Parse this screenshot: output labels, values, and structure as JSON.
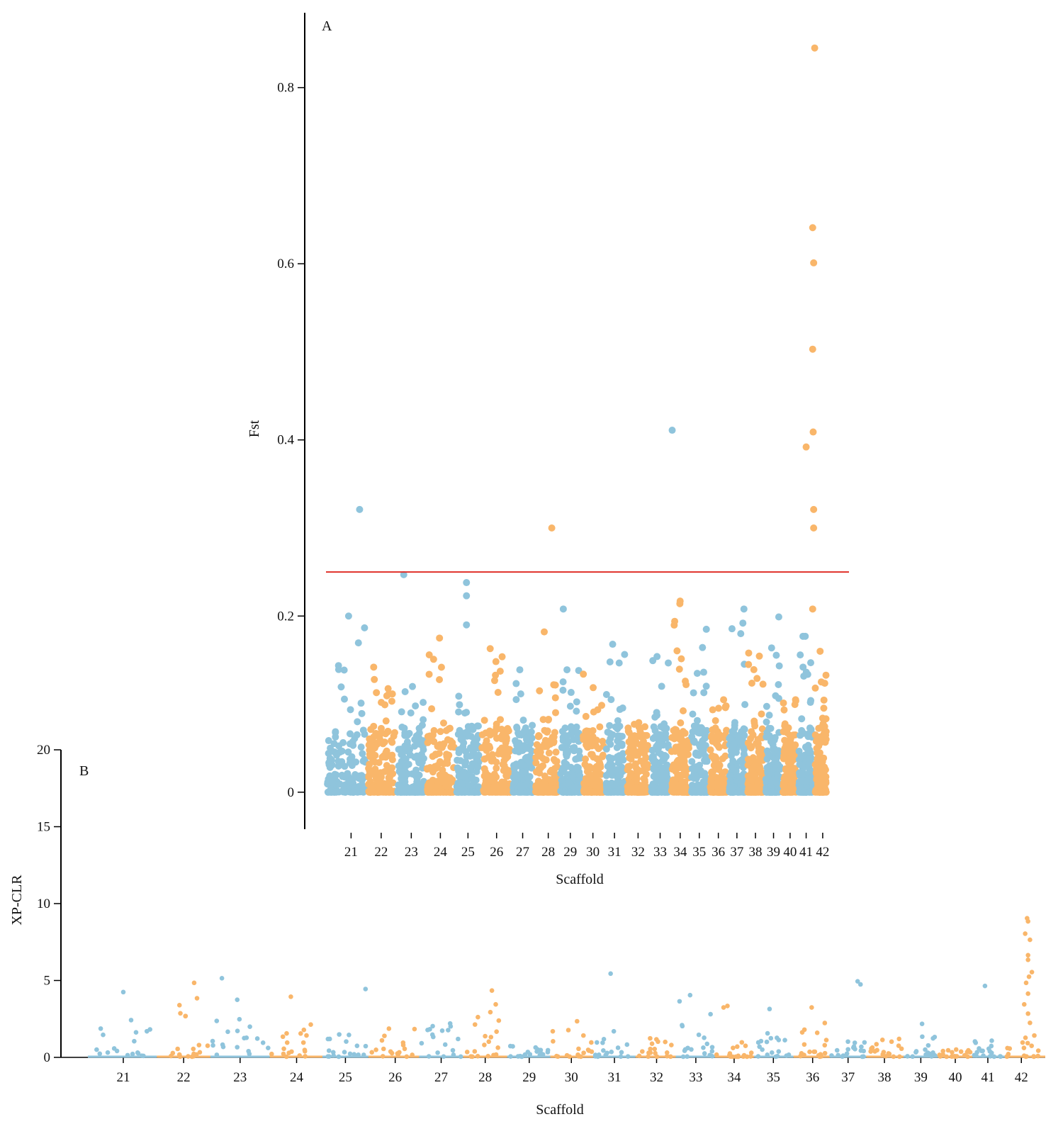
{
  "colors": {
    "blue": "#8fc4dc",
    "orange": "#f9b66a",
    "threshold": "#e0302a",
    "axis": "#000000"
  },
  "chart_data": [
    {
      "type": "scatter",
      "panel": "A",
      "ylabel": "Fst",
      "xlabel": "Scaffold",
      "ylim": [
        -0.042,
        0.885
      ],
      "yticks": [
        0,
        0.2,
        0.4,
        0.6,
        0.8
      ],
      "ytick_labels": [
        "0",
        "0.2",
        "0.4",
        "0.6",
        "0.8"
      ],
      "threshold": 0.25,
      "scaffolds": [
        {
          "label": "21",
          "center": 0.05,
          "start": 0.0,
          "end": 0.082,
          "color": "blue",
          "peak": 0.2
        },
        {
          "label": "22",
          "center": 0.11,
          "start": 0.082,
          "end": 0.14,
          "color": "orange",
          "peak": 0.142
        },
        {
          "label": "23",
          "center": 0.17,
          "start": 0.14,
          "end": 0.198,
          "color": "blue",
          "peak": 0.12
        },
        {
          "label": "24",
          "center": 0.228,
          "start": 0.198,
          "end": 0.258,
          "color": "orange",
          "peak": 0.175
        },
        {
          "label": "25",
          "center": 0.283,
          "start": 0.258,
          "end": 0.308,
          "color": "blue",
          "peak": 0.109
        },
        {
          "label": "26",
          "center": 0.34,
          "start": 0.308,
          "end": 0.37,
          "color": "orange",
          "peak": 0.163
        },
        {
          "label": "27",
          "center": 0.392,
          "start": 0.37,
          "end": 0.415,
          "color": "blue",
          "peak": 0.139
        },
        {
          "label": "28",
          "center": 0.443,
          "start": 0.415,
          "end": 0.465,
          "color": "orange",
          "peak": 0.122
        },
        {
          "label": "29",
          "center": 0.487,
          "start": 0.465,
          "end": 0.51,
          "color": "blue",
          "peak": 0.139
        },
        {
          "label": "30",
          "center": 0.532,
          "start": 0.51,
          "end": 0.556,
          "color": "orange",
          "peak": 0.134
        },
        {
          "label": "31",
          "center": 0.575,
          "start": 0.556,
          "end": 0.598,
          "color": "blue",
          "peak": 0.168
        },
        {
          "label": "32",
          "center": 0.622,
          "start": 0.598,
          "end": 0.646,
          "color": "orange",
          "peak": 0.079
        },
        {
          "label": "33",
          "center": 0.666,
          "start": 0.646,
          "end": 0.686,
          "color": "blue",
          "peak": 0.154
        },
        {
          "label": "34",
          "center": 0.706,
          "start": 0.686,
          "end": 0.726,
          "color": "orange",
          "peak": 0.217
        },
        {
          "label": "35",
          "center": 0.744,
          "start": 0.726,
          "end": 0.763,
          "color": "blue",
          "peak": 0.185
        },
        {
          "label": "36",
          "center": 0.782,
          "start": 0.763,
          "end": 0.801,
          "color": "orange",
          "peak": 0.105
        },
        {
          "label": "37",
          "center": 0.819,
          "start": 0.801,
          "end": 0.838,
          "color": "blue",
          "peak": 0.192
        },
        {
          "label": "38",
          "center": 0.856,
          "start": 0.838,
          "end": 0.874,
          "color": "orange",
          "peak": 0.158
        },
        {
          "label": "39",
          "center": 0.892,
          "start": 0.874,
          "end": 0.908,
          "color": "blue",
          "peak": 0.199
        },
        {
          "label": "40",
          "center": 0.925,
          "start": 0.908,
          "end": 0.94,
          "color": "orange",
          "peak": 0.105
        },
        {
          "label": "41",
          "center": 0.957,
          "start": 0.94,
          "end": 0.972,
          "color": "blue",
          "peak": 0.177
        },
        {
          "label": "42",
          "center": 0.99,
          "start": 0.972,
          "end": 1.0,
          "color": "orange",
          "peak": 0.16
        }
      ],
      "outliers": [
        {
          "scaffold": "21",
          "x": 0.067,
          "y": 0.321,
          "color": "blue"
        },
        {
          "scaffold": "23",
          "x": 0.155,
          "y": 0.247,
          "color": "blue"
        },
        {
          "scaffold": "25",
          "x": 0.28,
          "y": 0.238,
          "color": "blue"
        },
        {
          "scaffold": "25",
          "x": 0.28,
          "y": 0.223,
          "color": "blue"
        },
        {
          "scaffold": "25",
          "x": 0.28,
          "y": 0.19,
          "color": "blue"
        },
        {
          "scaffold": "28",
          "x": 0.45,
          "y": 0.3,
          "color": "orange"
        },
        {
          "scaffold": "28",
          "x": 0.435,
          "y": 0.182,
          "color": "orange"
        },
        {
          "scaffold": "29",
          "x": 0.473,
          "y": 0.208,
          "color": "blue"
        },
        {
          "scaffold": "34",
          "x": 0.69,
          "y": 0.411,
          "color": "blue"
        },
        {
          "scaffold": "34",
          "x": 0.695,
          "y": 0.194,
          "color": "orange"
        },
        {
          "scaffold": "37",
          "x": 0.833,
          "y": 0.208,
          "color": "blue"
        },
        {
          "scaffold": "41",
          "x": 0.957,
          "y": 0.392,
          "color": "orange"
        },
        {
          "scaffold": "42",
          "x": 0.974,
          "y": 0.845,
          "color": "orange"
        },
        {
          "scaffold": "42",
          "x": 0.97,
          "y": 0.641,
          "color": "orange"
        },
        {
          "scaffold": "42",
          "x": 0.972,
          "y": 0.601,
          "color": "orange"
        },
        {
          "scaffold": "42",
          "x": 0.97,
          "y": 0.503,
          "color": "orange"
        },
        {
          "scaffold": "42",
          "x": 0.971,
          "y": 0.409,
          "color": "orange"
        },
        {
          "scaffold": "42",
          "x": 0.972,
          "y": 0.321,
          "color": "orange"
        },
        {
          "scaffold": "42",
          "x": 0.972,
          "y": 0.3,
          "color": "orange"
        },
        {
          "scaffold": "42",
          "x": 0.97,
          "y": 0.208,
          "color": "orange"
        }
      ]
    },
    {
      "type": "scatter",
      "panel": "B",
      "ylabel": "XP-CLR",
      "xlabel": "Scaffold",
      "ylim": [
        0,
        20
      ],
      "yticks": [
        0,
        5,
        10,
        15,
        20
      ],
      "ytick_labels": [
        "0",
        "5",
        "10",
        "15",
        "20"
      ],
      "scaffolds": [
        {
          "label": "21",
          "center": 0.037,
          "start": 0.0,
          "end": 0.072,
          "color": "blue",
          "peak": 2.4
        },
        {
          "label": "22",
          "center": 0.1,
          "start": 0.072,
          "end": 0.128,
          "color": "orange",
          "peak": 3.8
        },
        {
          "label": "23",
          "center": 0.159,
          "start": 0.128,
          "end": 0.19,
          "color": "blue",
          "peak": 2.7
        },
        {
          "label": "24",
          "center": 0.218,
          "start": 0.19,
          "end": 0.245,
          "color": "orange",
          "peak": 2.1
        },
        {
          "label": "25",
          "center": 0.269,
          "start": 0.245,
          "end": 0.293,
          "color": "blue",
          "peak": 1.5
        },
        {
          "label": "26",
          "center": 0.321,
          "start": 0.293,
          "end": 0.346,
          "color": "orange",
          "peak": 2.1
        },
        {
          "label": "27",
          "center": 0.369,
          "start": 0.346,
          "end": 0.392,
          "color": "blue",
          "peak": 2.2
        },
        {
          "label": "28",
          "center": 0.415,
          "start": 0.392,
          "end": 0.438,
          "color": "orange",
          "peak": 3.6
        },
        {
          "label": "29",
          "center": 0.461,
          "start": 0.438,
          "end": 0.483,
          "color": "blue",
          "peak": 0.7
        },
        {
          "label": "30",
          "center": 0.505,
          "start": 0.483,
          "end": 0.528,
          "color": "orange",
          "peak": 2.4
        },
        {
          "label": "31",
          "center": 0.55,
          "start": 0.528,
          "end": 0.572,
          "color": "blue",
          "peak": 2.0
        },
        {
          "label": "32",
          "center": 0.594,
          "start": 0.572,
          "end": 0.614,
          "color": "orange",
          "peak": 1.3
        },
        {
          "label": "33",
          "center": 0.635,
          "start": 0.614,
          "end": 0.655,
          "color": "blue",
          "peak": 3.0
        },
        {
          "label": "34",
          "center": 0.675,
          "start": 0.655,
          "end": 0.696,
          "color": "orange",
          "peak": 1.1
        },
        {
          "label": "35",
          "center": 0.716,
          "start": 0.696,
          "end": 0.737,
          "color": "blue",
          "peak": 1.6
        },
        {
          "label": "36",
          "center": 0.757,
          "start": 0.737,
          "end": 0.775,
          "color": "orange",
          "peak": 2.2
        },
        {
          "label": "37",
          "center": 0.794,
          "start": 0.775,
          "end": 0.813,
          "color": "blue",
          "peak": 1.0
        },
        {
          "label": "38",
          "center": 0.832,
          "start": 0.813,
          "end": 0.852,
          "color": "orange",
          "peak": 1.4
        },
        {
          "label": "39",
          "center": 0.87,
          "start": 0.852,
          "end": 0.888,
          "color": "blue",
          "peak": 2.3
        },
        {
          "label": "40",
          "center": 0.906,
          "start": 0.888,
          "end": 0.924,
          "color": "orange",
          "peak": 0.6
        },
        {
          "label": "41",
          "center": 0.94,
          "start": 0.924,
          "end": 0.958,
          "color": "blue",
          "peak": 1.2
        },
        {
          "label": "42",
          "center": 0.975,
          "start": 0.958,
          "end": 1.0,
          "color": "orange",
          "peak": 1.8
        }
      ],
      "outliers": [
        {
          "scaffold": "21",
          "x": 0.037,
          "y": 4.2,
          "color": "blue"
        },
        {
          "scaffold": "22",
          "x": 0.111,
          "y": 4.8,
          "color": "orange"
        },
        {
          "scaffold": "22",
          "x": 0.114,
          "y": 3.8,
          "color": "orange"
        },
        {
          "scaffold": "23",
          "x": 0.14,
          "y": 5.1,
          "color": "blue"
        },
        {
          "scaffold": "23",
          "x": 0.156,
          "y": 3.7,
          "color": "blue"
        },
        {
          "scaffold": "24",
          "x": 0.212,
          "y": 3.9,
          "color": "orange"
        },
        {
          "scaffold": "25",
          "x": 0.29,
          "y": 4.4,
          "color": "blue"
        },
        {
          "scaffold": "28",
          "x": 0.422,
          "y": 4.3,
          "color": "orange"
        },
        {
          "scaffold": "28",
          "x": 0.426,
          "y": 3.4,
          "color": "orange"
        },
        {
          "scaffold": "31",
          "x": 0.546,
          "y": 5.4,
          "color": "blue"
        },
        {
          "scaffold": "33",
          "x": 0.629,
          "y": 4.0,
          "color": "blue"
        },
        {
          "scaffold": "33",
          "x": 0.618,
          "y": 3.6,
          "color": "blue"
        },
        {
          "scaffold": "34",
          "x": 0.664,
          "y": 3.2,
          "color": "orange"
        },
        {
          "scaffold": "34",
          "x": 0.668,
          "y": 3.3,
          "color": "orange"
        },
        {
          "scaffold": "35",
          "x": 0.712,
          "y": 3.1,
          "color": "blue"
        },
        {
          "scaffold": "36",
          "x": 0.756,
          "y": 3.2,
          "color": "orange"
        },
        {
          "scaffold": "37",
          "x": 0.804,
          "y": 4.9,
          "color": "blue"
        },
        {
          "scaffold": "37",
          "x": 0.807,
          "y": 4.7,
          "color": "blue"
        },
        {
          "scaffold": "41",
          "x": 0.937,
          "y": 4.6,
          "color": "blue"
        },
        {
          "scaffold": "42",
          "x": 0.981,
          "y": 9.0,
          "color": "orange"
        },
        {
          "scaffold": "42",
          "x": 0.982,
          "y": 8.8,
          "color": "orange"
        },
        {
          "scaffold": "42",
          "x": 0.979,
          "y": 8.0,
          "color": "orange"
        },
        {
          "scaffold": "42",
          "x": 0.984,
          "y": 7.6,
          "color": "orange"
        },
        {
          "scaffold": "42",
          "x": 0.982,
          "y": 6.6,
          "color": "orange"
        },
        {
          "scaffold": "42",
          "x": 0.982,
          "y": 6.3,
          "color": "orange"
        },
        {
          "scaffold": "42",
          "x": 0.986,
          "y": 5.5,
          "color": "orange"
        },
        {
          "scaffold": "42",
          "x": 0.983,
          "y": 5.2,
          "color": "orange"
        },
        {
          "scaffold": "42",
          "x": 0.98,
          "y": 4.8,
          "color": "orange"
        },
        {
          "scaffold": "42",
          "x": 0.982,
          "y": 4.1,
          "color": "orange"
        },
        {
          "scaffold": "42",
          "x": 0.978,
          "y": 3.4,
          "color": "orange"
        },
        {
          "scaffold": "42",
          "x": 0.982,
          "y": 2.8,
          "color": "orange"
        },
        {
          "scaffold": "42",
          "x": 0.984,
          "y": 2.2,
          "color": "orange"
        }
      ]
    }
  ]
}
